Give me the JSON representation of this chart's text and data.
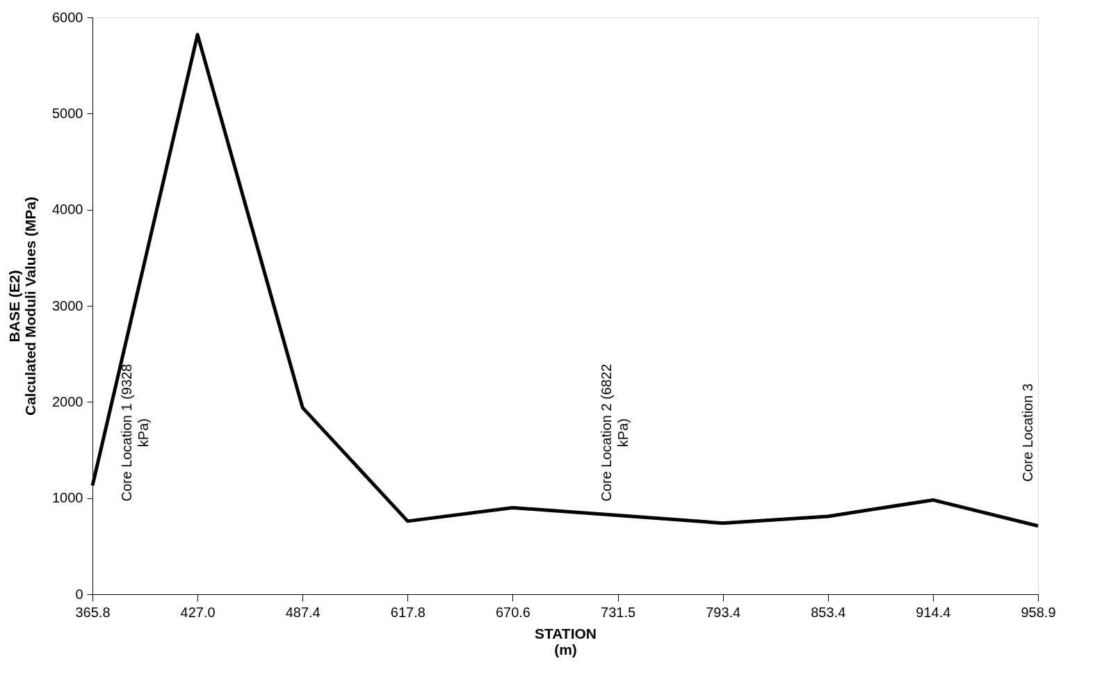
{
  "chart_data": {
    "type": "line",
    "xlabel": "STATION\n(m)",
    "ylabel": "BASE (E2)\nCalculated Moduli Values (MPa)",
    "categories": [
      "365.8",
      "427.0",
      "487.4",
      "617.8",
      "670.6",
      "731.5",
      "793.4",
      "853.4",
      "914.4",
      "958.9"
    ],
    "series": [
      {
        "color": "#000000",
        "values": [
          1130,
          5820,
          1940,
          760,
          900,
          820,
          740,
          810,
          980,
          710
        ]
      }
    ],
    "ylim": [
      0,
      6000
    ],
    "yticks": [
      0,
      1000,
      2000,
      3000,
      4000,
      5000,
      6000
    ],
    "grid": false,
    "marker": "none",
    "line_style": "solid",
    "annotations": [
      "Core Location 1 (9328\nkPa)",
      "Core Location 2 (6822\nkPa)",
      "Core Location 3"
    ]
  }
}
